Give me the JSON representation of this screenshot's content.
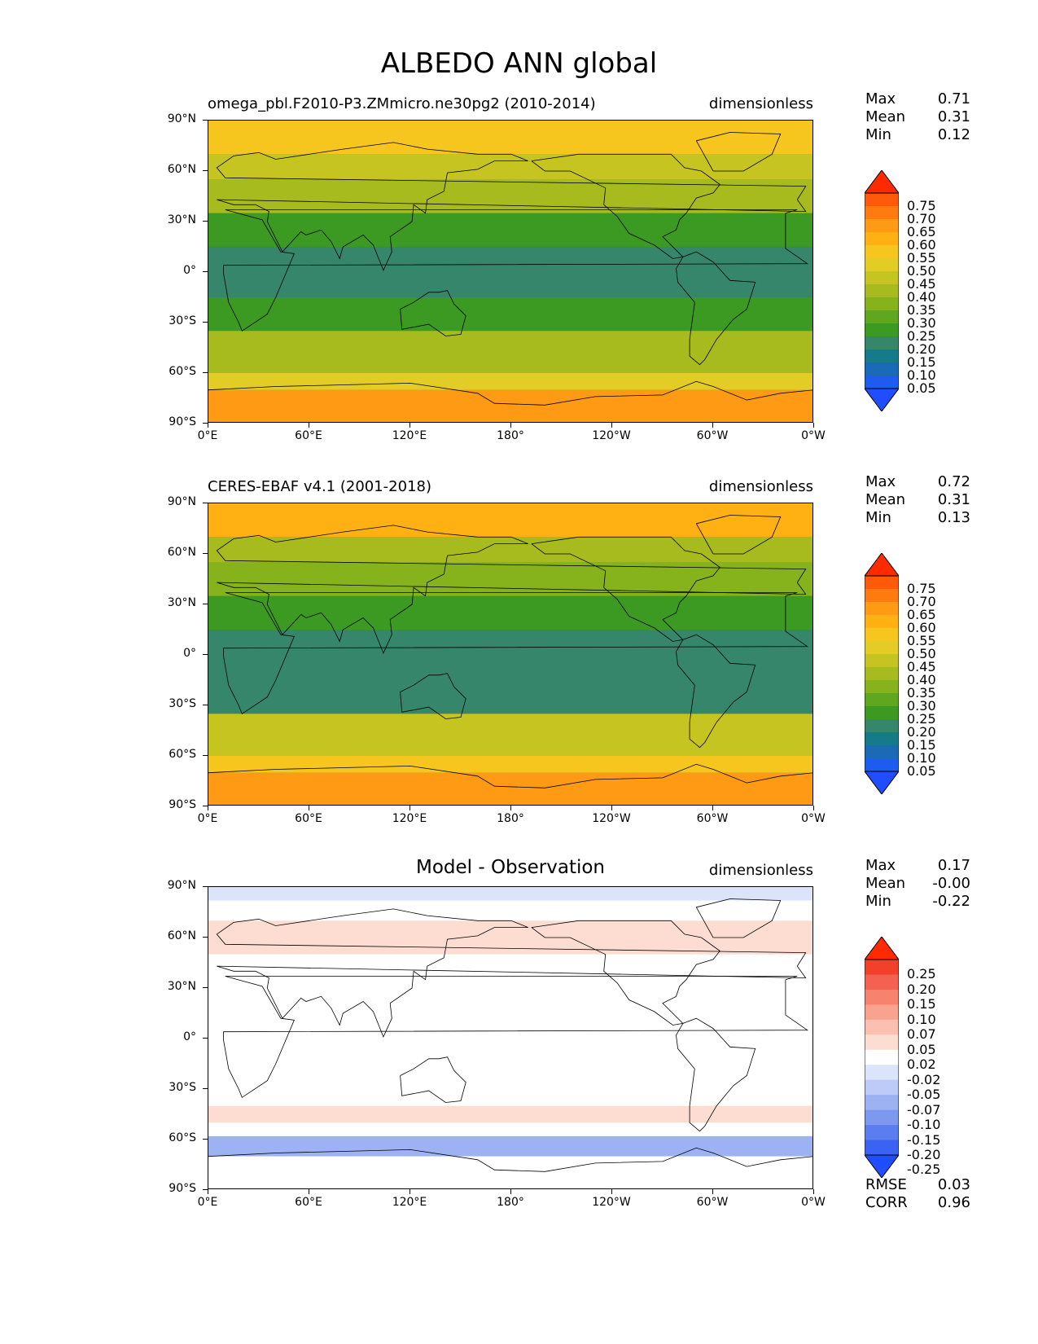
{
  "title": "ALBEDO ANN global",
  "xticks": [
    "0°E",
    "60°E",
    "120°E",
    "180°",
    "120°W",
    "60°W",
    "0°W"
  ],
  "yticks": [
    "90°N",
    "60°N",
    "30°N",
    "0°",
    "30°S",
    "60°S",
    "90°S"
  ],
  "panels": [
    {
      "title": "omega_pbl.F2010-P3.ZMmicro.ne30pg2 (2010-2014)",
      "units": "dimensionless",
      "stats": {
        "max_label": "Max",
        "max": "0.71",
        "mean_label": "Mean",
        "mean": "0.31",
        "min_label": "Min",
        "min": "0.12"
      },
      "colorbar": {
        "labels": [
          "0.75",
          "0.70",
          "0.65",
          "0.60",
          "0.55",
          "0.50",
          "0.45",
          "0.40",
          "0.35",
          "0.30",
          "0.25",
          "0.20",
          "0.15",
          "0.10",
          "0.05"
        ],
        "colors": [
          "#ff2a00",
          "#ff5a0a",
          "#ff7a0f",
          "#ff9a14",
          "#ffb114",
          "#f6c51e",
          "#e2cc25",
          "#c6c420",
          "#a8bb1e",
          "#86b21c",
          "#5fa71e",
          "#3c9a22",
          "#35866a",
          "#157a8a",
          "#1a6ab8",
          "#1e5cf0",
          "#1f4dff"
        ]
      },
      "chart_data": {
        "type": "heatmap",
        "title": "omega_pbl.F2010-P3.ZMmicro.ne30pg2 (2010-2014)",
        "variable": "ALBEDO",
        "units": "dimensionless",
        "xlim": [
          0,
          360
        ],
        "ylim": [
          -90,
          90
        ],
        "levels": [
          0.05,
          0.1,
          0.15,
          0.2,
          0.25,
          0.3,
          0.35,
          0.4,
          0.45,
          0.5,
          0.55,
          0.6,
          0.65,
          0.7,
          0.75
        ],
        "zonal_bands": [
          {
            "lat": [
              70,
              90
            ],
            "value": 0.58
          },
          {
            "lat": [
              55,
              70
            ],
            "value": 0.45
          },
          {
            "lat": [
              35,
              55
            ],
            "value": 0.4
          },
          {
            "lat": [
              15,
              35
            ],
            "value": 0.28
          },
          {
            "lat": [
              -15,
              15
            ],
            "value": 0.24
          },
          {
            "lat": [
              -35,
              -15
            ],
            "value": 0.25
          },
          {
            "lat": [
              -60,
              -35
            ],
            "value": 0.43
          },
          {
            "lat": [
              -70,
              -60
            ],
            "value": 0.5
          },
          {
            "lat": [
              -90,
              -70
            ],
            "value": 0.66
          }
        ],
        "max": 0.71,
        "mean": 0.31,
        "min": 0.12
      }
    },
    {
      "title": "CERES-EBAF v4.1 (2001-2018)",
      "units": "dimensionless",
      "stats": {
        "max_label": "Max",
        "max": "0.72",
        "mean_label": "Mean",
        "mean": "0.31",
        "min_label": "Min",
        "min": "0.13"
      },
      "colorbar": {
        "labels": [
          "0.75",
          "0.70",
          "0.65",
          "0.60",
          "0.55",
          "0.50",
          "0.45",
          "0.40",
          "0.35",
          "0.30",
          "0.25",
          "0.20",
          "0.15",
          "0.10",
          "0.05"
        ],
        "colors": [
          "#ff2a00",
          "#ff5a0a",
          "#ff7a0f",
          "#ff9a14",
          "#ffb114",
          "#f6c51e",
          "#e2cc25",
          "#c6c420",
          "#a8bb1e",
          "#86b21c",
          "#5fa71e",
          "#3c9a22",
          "#35866a",
          "#157a8a",
          "#1a6ab8",
          "#1e5cf0",
          "#1f4dff"
        ]
      },
      "chart_data": {
        "type": "heatmap",
        "title": "CERES-EBAF v4.1 (2001-2018)",
        "variable": "ALBEDO",
        "units": "dimensionless",
        "xlim": [
          0,
          360
        ],
        "ylim": [
          -90,
          90
        ],
        "levels": [
          0.05,
          0.1,
          0.15,
          0.2,
          0.25,
          0.3,
          0.35,
          0.4,
          0.45,
          0.5,
          0.55,
          0.6,
          0.65,
          0.7,
          0.75
        ],
        "zonal_bands": [
          {
            "lat": [
              70,
              90
            ],
            "value": 0.6
          },
          {
            "lat": [
              55,
              70
            ],
            "value": 0.44
          },
          {
            "lat": [
              35,
              55
            ],
            "value": 0.38
          },
          {
            "lat": [
              15,
              35
            ],
            "value": 0.27
          },
          {
            "lat": [
              -15,
              15
            ],
            "value": 0.22
          },
          {
            "lat": [
              -35,
              -15
            ],
            "value": 0.24
          },
          {
            "lat": [
              -60,
              -35
            ],
            "value": 0.46
          },
          {
            "lat": [
              -70,
              -60
            ],
            "value": 0.55
          },
          {
            "lat": [
              -90,
              -70
            ],
            "value": 0.66
          }
        ],
        "max": 0.72,
        "mean": 0.31,
        "min": 0.13
      }
    },
    {
      "title": "Model - Observation",
      "units": "dimensionless",
      "stats": {
        "max_label": "Max",
        "max": "0.17",
        "mean_label": "Mean",
        "mean": "-0.00",
        "min_label": "Min",
        "min": "-0.22"
      },
      "extra": {
        "rmse_label": "RMSE",
        "rmse": "0.03",
        "corr_label": "CORR",
        "corr": "0.96"
      },
      "colorbar": {
        "labels": [
          "0.25",
          "0.20",
          "0.15",
          "0.10",
          "0.07",
          "0.05",
          "0.02",
          "-0.02",
          "-0.05",
          "-0.07",
          "-0.10",
          "-0.15",
          "-0.20",
          "-0.25"
        ],
        "colors": [
          "#ff2a00",
          "#f2402a",
          "#f46150",
          "#f7836f",
          "#f9a28e",
          "#fbc0b0",
          "#fdddd2",
          "#ffffff",
          "#dce4fb",
          "#bccbf7",
          "#9cb2f3",
          "#7c98ef",
          "#5a7ef0",
          "#3c62f4",
          "#1f4dff"
        ]
      },
      "chart_data": {
        "type": "heatmap",
        "title": "Model - Observation",
        "variable": "ALBEDO",
        "units": "dimensionless",
        "xlim": [
          0,
          360
        ],
        "ylim": [
          -90,
          90
        ],
        "levels": [
          -0.25,
          -0.2,
          -0.15,
          -0.1,
          -0.07,
          -0.05,
          -0.02,
          0.02,
          0.05,
          0.07,
          0.1,
          0.15,
          0.2,
          0.25
        ],
        "zonal_bands": [
          {
            "lat": [
              82,
              90
            ],
            "value": -0.03
          },
          {
            "lat": [
              50,
              70
            ],
            "value": 0.03
          },
          {
            "lat": [
              -40,
              40
            ],
            "value": 0.0
          },
          {
            "lat": [
              -50,
              -40
            ],
            "value": 0.03
          },
          {
            "lat": [
              -58,
              -50
            ],
            "value": 0.0
          },
          {
            "lat": [
              -70,
              -58
            ],
            "value": -0.1
          },
          {
            "lat": [
              -90,
              -70
            ],
            "value": 0.0
          }
        ],
        "max": 0.17,
        "mean": -0.0,
        "min": -0.22,
        "rmse": 0.03,
        "corr": 0.96
      }
    }
  ]
}
